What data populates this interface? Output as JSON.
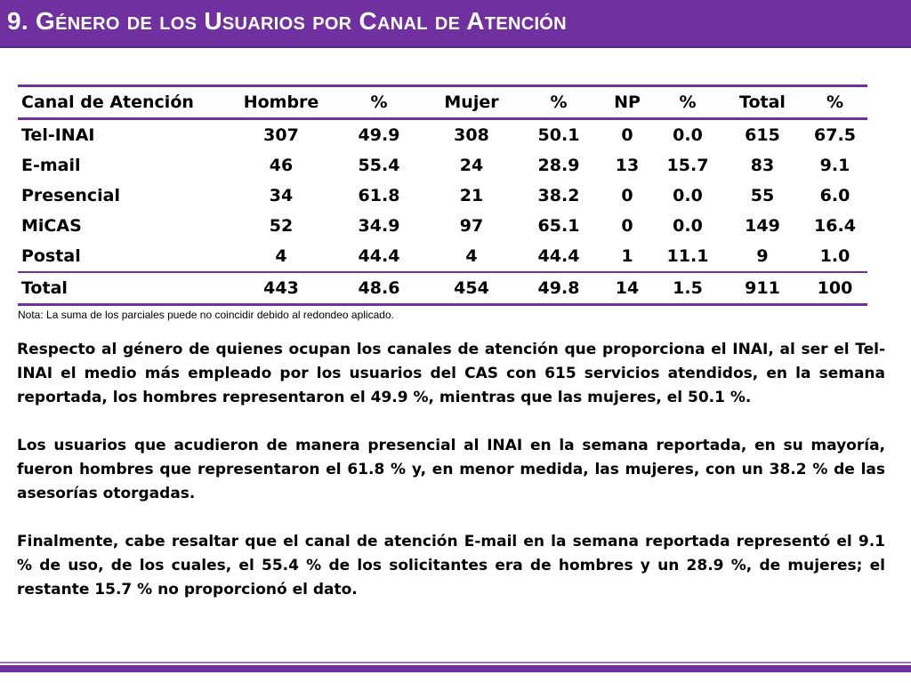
{
  "title": "9. Género de los Usuarios por Canal de Atención",
  "table": {
    "headers": [
      "Canal de Atención",
      "Hombre",
      "%",
      "Mujer",
      "%",
      "NP",
      "%",
      "Total",
      "%"
    ],
    "rows": [
      [
        "Tel-INAI",
        "307",
        "49.9",
        "308",
        "50.1",
        "0",
        "0.0",
        "615",
        "67.5"
      ],
      [
        "E-mail",
        "46",
        "55.4",
        "24",
        "28.9",
        "13",
        "15.7",
        "83",
        "9.1"
      ],
      [
        "Presencial",
        "34",
        "61.8",
        "21",
        "38.2",
        "0",
        "0.0",
        "55",
        "6.0"
      ],
      [
        "MiCAS",
        "52",
        "34.9",
        "97",
        "65.1",
        "0",
        "0.0",
        "149",
        "16.4"
      ],
      [
        "Postal",
        "4",
        "44.4",
        "4",
        "44.4",
        "1",
        "11.1",
        "9",
        "1.0"
      ]
    ],
    "total": [
      "Total",
      "443",
      "48.6",
      "454",
      "49.8",
      "14",
      "1.5",
      "911",
      "100"
    ]
  },
  "note": "Nota: La suma de los parciales puede no coincidir debido al redondeo aplicado.",
  "paragraphs": [
    "Respecto al género de quienes ocupan los canales de atención que proporciona el INAI, al ser el Tel-INAI el medio más empleado por los usuarios del CAS con 615 servicios atendidos, en la semana reportada, los hombres representaron el 49.9 %, mientras que las mujeres, el 50.1 %.",
    "Los usuarios que acudieron de manera presencial al INAI en la semana reportada, en su mayoría, fueron hombres que representaron el 61.8 % y, en menor medida, las mujeres, con un 38.2 % de las asesorías otorgadas.",
    "Finalmente, cabe resaltar que el canal de atención E-mail en la semana reportada representó el 9.1 % de uso, de los cuales, el 55.4 % de los solicitantes era de hombres y un 28.9 %, de mujeres; el restante 15.7 % no proporcionó el dato."
  ],
  "colors": {
    "accent": "#7030a0",
    "text": "#000000",
    "title_text": "#ffffff"
  }
}
